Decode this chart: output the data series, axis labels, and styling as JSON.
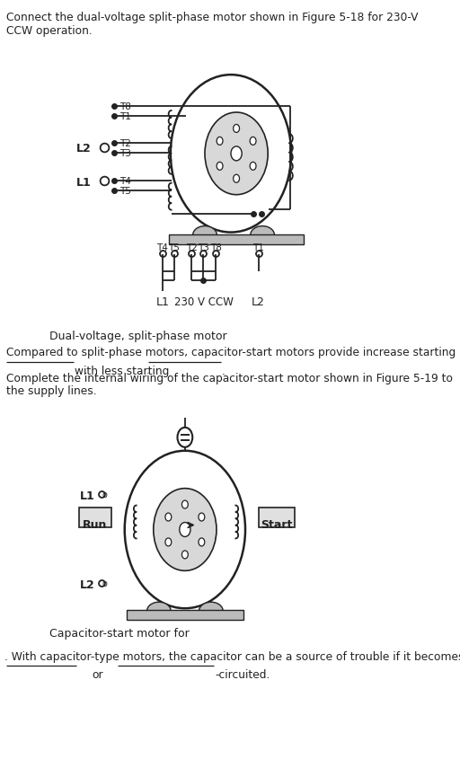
{
  "bg_color": "#ffffff",
  "line_color": "#222222",
  "light_gray": "#bbbbbb",
  "title_text1": "Connect the dual-voltage split-phase motor shown in Figure 5-18 for 230-V",
  "title_text2": "CCW operation.",
  "diagram1_caption": "Dual-voltage, split-phase motor",
  "mid_text1": "Compared to split-phase motors, capacitor-start motors provide increase starting",
  "mid_text2": "with less starting",
  "mid_text3": "Complete the internal wiring of the capacitor-start motor shown in Figure 5-19 to",
  "mid_text4": "the supply lines.",
  "diagram2_caption": "Capacitor-start motor for",
  "final_text1": ". With capacitor-type motors, the capacitor can be a source of trouble if it becomes",
  "final_text2": "or",
  "final_text3": "-circuited."
}
